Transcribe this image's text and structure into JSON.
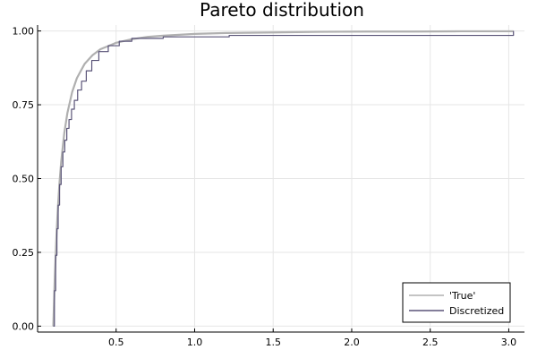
{
  "chart_data": {
    "type": "line",
    "title": "Pareto distribution",
    "xlabel": "",
    "ylabel": "",
    "xlim": [
      0.0,
      3.1
    ],
    "ylim": [
      -0.02,
      1.02
    ],
    "xticks": [
      0.5,
      1.0,
      1.5,
      2.0,
      2.5,
      3.0
    ],
    "xtick_labels": [
      "0.5",
      "1.0",
      "1.5",
      "2.0",
      "2.5",
      "3.0"
    ],
    "yticks": [
      0.0,
      0.25,
      0.5,
      0.75,
      1.0
    ],
    "ytick_labels": [
      "0.00",
      "0.25",
      "0.50",
      "0.75",
      "1.00"
    ],
    "grid": true,
    "legend_position": "bottom-right",
    "series": [
      {
        "name": "'True'",
        "kind": "smooth",
        "color": "#b0b0b0",
        "x": [
          0.1,
          0.11,
          0.12,
          0.13,
          0.14,
          0.15,
          0.17,
          0.19,
          0.22,
          0.25,
          0.3,
          0.35,
          0.4,
          0.5,
          0.6,
          0.7,
          0.8,
          1.0,
          1.2,
          1.5,
          1.8,
          2.1,
          2.4,
          2.7,
          3.03
        ],
        "y": [
          0.0,
          0.174,
          0.306,
          0.408,
          0.49,
          0.556,
          0.654,
          0.723,
          0.793,
          0.84,
          0.889,
          0.918,
          0.938,
          0.96,
          0.972,
          0.98,
          0.984,
          0.99,
          0.993,
          0.995,
          0.997,
          0.998,
          0.998,
          0.999,
          0.999
        ]
      },
      {
        "name": "Discretized",
        "kind": "step",
        "color": "#5a5478",
        "x": [
          0.1,
          0.107,
          0.115,
          0.123,
          0.131,
          0.14,
          0.15,
          0.161,
          0.173,
          0.186,
          0.2,
          0.216,
          0.234,
          0.255,
          0.28,
          0.31,
          0.345,
          0.39,
          0.45,
          0.52,
          0.6,
          0.8,
          1.22,
          3.03
        ],
        "y": [
          0.0,
          0.12,
          0.24,
          0.33,
          0.41,
          0.48,
          0.54,
          0.59,
          0.63,
          0.67,
          0.7,
          0.735,
          0.765,
          0.8,
          0.83,
          0.865,
          0.9,
          0.93,
          0.95,
          0.965,
          0.975,
          0.98,
          0.985,
          0.99
        ]
      }
    ]
  }
}
